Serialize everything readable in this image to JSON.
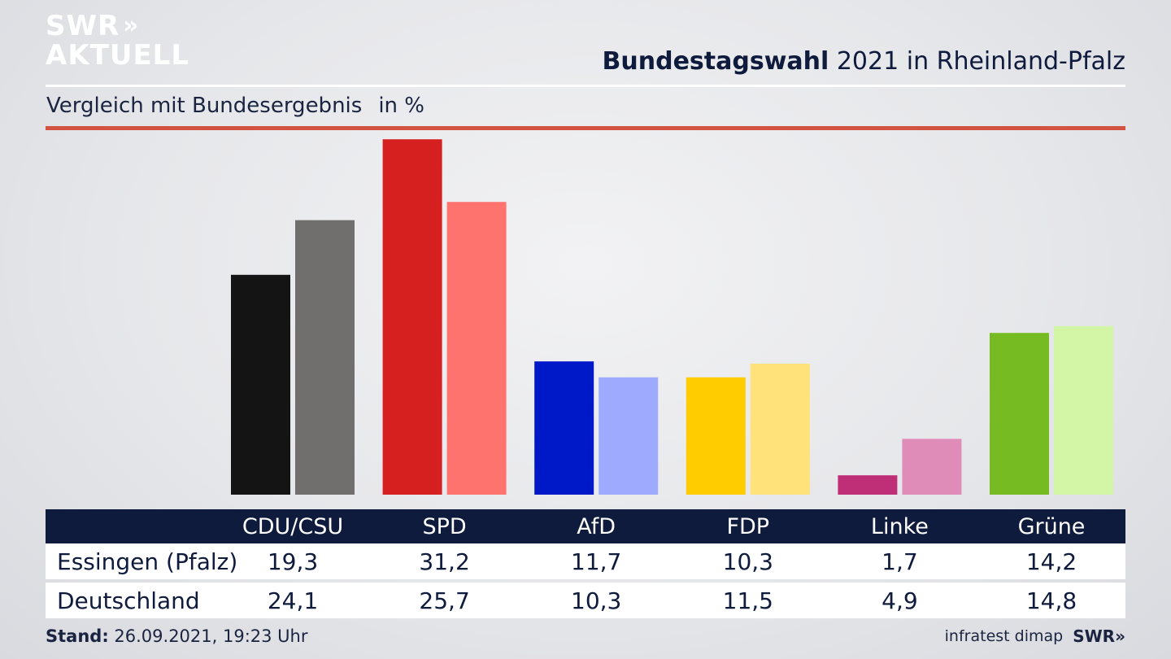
{
  "brand": {
    "line1": "SWR",
    "arrows": "»",
    "line2": "AKTUELL",
    "footer_logo": "SWR»"
  },
  "header": {
    "title_bold": "Bundestagswahl",
    "title_rest": " 2021 in Rheinland-Pfalz"
  },
  "subtitle": {
    "text": "Vergleich mit Bundesergebnis",
    "unit": "in %"
  },
  "footer": {
    "stand_label": "Stand:",
    "stand_value": " 26.09.2021, 19:23 Uhr",
    "source": "infratest dimap"
  },
  "chart_data": {
    "type": "bar",
    "categories": [
      "CDU/CSU",
      "SPD",
      "AfD",
      "FDP",
      "Linke",
      "Grüne"
    ],
    "series": [
      {
        "name": "Essingen (Pfalz)",
        "values": [
          19.3,
          31.2,
          11.7,
          10.3,
          1.7,
          14.2
        ]
      },
      {
        "name": "Deutschland",
        "values": [
          24.1,
          25.7,
          10.3,
          11.5,
          4.9,
          14.8
        ]
      }
    ],
    "value_labels": [
      [
        "19,3",
        "31,2",
        "11,7",
        "10,3",
        "1,7",
        "14,2"
      ],
      [
        "24,1",
        "25,7",
        "10,3",
        "11,5",
        "4,9",
        "14,8"
      ]
    ],
    "colors": [
      [
        "#141414",
        "#d61f1f",
        "#0019c8",
        "#ffcc00",
        "#be2f78",
        "#77bb22"
      ],
      [
        "#706f6e",
        "#ff736f",
        "#9eaafe",
        "#ffe27a",
        "#e08cb8",
        "#d3f5a6"
      ]
    ],
    "ylim": [
      0,
      32
    ],
    "grid": false,
    "legend": "table-below"
  }
}
